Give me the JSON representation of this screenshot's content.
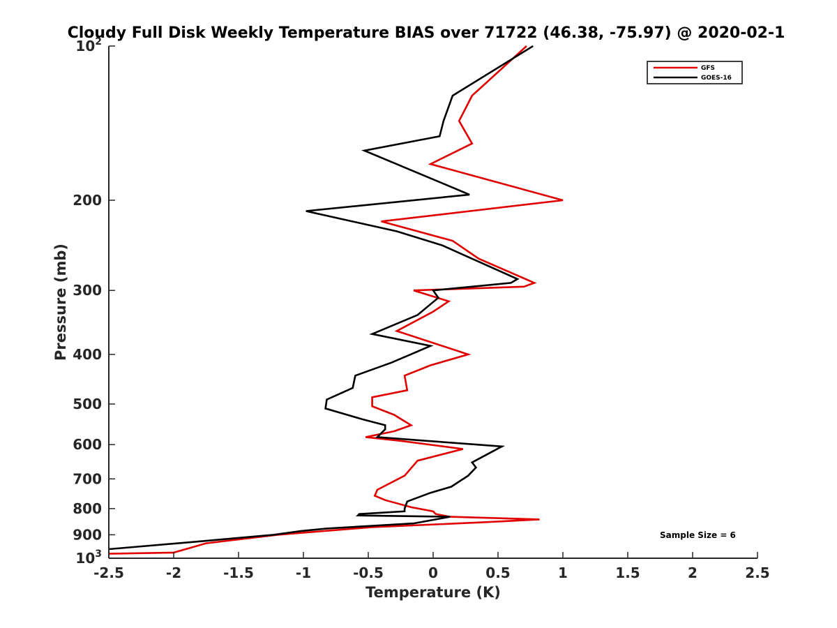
{
  "chart_data": {
    "type": "line",
    "title": "Cloudy Full Disk Weekly Temperature BIAS over 71722 (46.38, -75.97) @ 2020-02-1",
    "xlabel": "Temperature (K)",
    "ylabel": "Pressure (mb)",
    "xlim": [
      -2.5,
      2.5
    ],
    "ylim": [
      100,
      1000
    ],
    "yscale": "log",
    "y_reversed": true,
    "grid": false,
    "legend_position": "top-right",
    "x_ticks": [
      "-2.5",
      "-2",
      "-1.5",
      "-1",
      "-0.5",
      "0",
      "0.5",
      "1",
      "1.5",
      "2",
      "2.5"
    ],
    "y_ticks": [
      {
        "value": 100,
        "base": "10",
        "exp": "2"
      },
      {
        "value": 200,
        "label": "200"
      },
      {
        "value": 300,
        "label": "300"
      },
      {
        "value": 400,
        "label": "400"
      },
      {
        "value": 500,
        "label": "500"
      },
      {
        "value": 600,
        "label": "600"
      },
      {
        "value": 700,
        "label": "700"
      },
      {
        "value": 800,
        "label": "800"
      },
      {
        "value": 900,
        "label": "900"
      },
      {
        "value": 1000,
        "base": "10",
        "exp": "3"
      }
    ],
    "annotation": "Sample Size = 6",
    "series": [
      {
        "name": "GFS",
        "color": "#e00000",
        "x": [
          0.72,
          0.3,
          0.2,
          0.3,
          -0.02,
          1.0,
          -0.4,
          0.15,
          0.35,
          0.78,
          0.7,
          -0.15,
          0.12,
          0.0,
          -0.28,
          0.27,
          -0.02,
          -0.22,
          -0.2,
          -0.47,
          -0.47,
          -0.3,
          -0.17,
          -0.3,
          -0.52,
          -0.25,
          0.23,
          -0.12,
          -0.22,
          -0.43,
          -0.45,
          -0.37,
          -0.17,
          0.0,
          0.02,
          0.13,
          0.82,
          0.42,
          -0.48,
          -1.2,
          -1.75,
          -2.0,
          -2.5
        ],
        "y": [
          100,
          125,
          140,
          155,
          170,
          200,
          220,
          240,
          260,
          290,
          295,
          300,
          315,
          330,
          360,
          400,
          420,
          440,
          470,
          485,
          505,
          525,
          550,
          565,
          580,
          590,
          612,
          645,
          690,
          735,
          755,
          770,
          795,
          810,
          820,
          830,
          840,
          850,
          870,
          900,
          935,
          975,
          980
        ]
      },
      {
        "name": "GOES-16",
        "color": "#000000",
        "x": [
          0.77,
          0.15,
          0.08,
          0.05,
          -0.53,
          0.28,
          -0.98,
          -0.28,
          0.07,
          0.65,
          0.6,
          0.3,
          0.0,
          0.04,
          -0.12,
          -0.47,
          -0.02,
          -0.32,
          -0.6,
          -0.62,
          -0.82,
          -0.83,
          -0.55,
          -0.37,
          -0.37,
          -0.43,
          -0.05,
          0.53,
          0.3,
          0.33,
          0.27,
          0.14,
          -0.02,
          -0.2,
          -0.22,
          -0.22,
          -0.57,
          -0.58,
          0.13,
          -0.15,
          -0.82,
          -1.02,
          -1.23,
          -1.75,
          -2.5
        ],
        "y": [
          100,
          125,
          140,
          150,
          160,
          195,
          210,
          230,
          245,
          285,
          290,
          295,
          300,
          310,
          335,
          365,
          385,
          415,
          440,
          465,
          490,
          510,
          535,
          550,
          560,
          580,
          590,
          605,
          650,
          665,
          690,
          725,
          745,
          775,
          800,
          810,
          820,
          825,
          830,
          855,
          875,
          885,
          900,
          925,
          960
        ]
      }
    ]
  }
}
